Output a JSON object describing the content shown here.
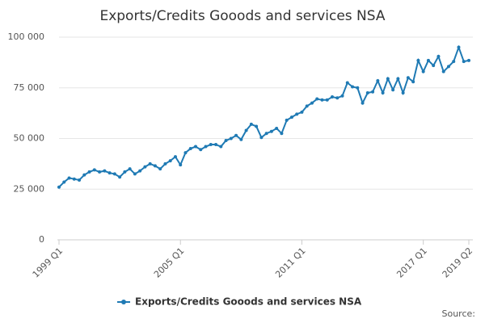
{
  "chart_data": {
    "type": "line",
    "title": "Exports/Credits Gooods and services NSA",
    "categories": [
      "1999 Q1",
      null,
      null,
      null,
      null,
      null,
      null,
      null,
      null,
      null,
      null,
      null,
      null,
      null,
      null,
      null,
      null,
      null,
      null,
      null,
      null,
      null,
      null,
      null,
      "2005 Q1",
      null,
      null,
      null,
      null,
      null,
      null,
      null,
      null,
      null,
      null,
      null,
      null,
      null,
      null,
      null,
      null,
      null,
      null,
      null,
      null,
      null,
      null,
      null,
      "2011 Q1",
      null,
      null,
      null,
      null,
      null,
      null,
      null,
      null,
      null,
      null,
      null,
      null,
      null,
      null,
      null,
      null,
      null,
      null,
      null,
      null,
      null,
      null,
      null,
      "2017 Q1",
      null,
      null,
      null,
      null,
      null,
      null,
      null,
      null,
      "2019 Q2"
    ],
    "series": [
      {
        "name": "Exports/Credits Gooods and services NSA",
        "color": "#1f7ab4",
        "values": [
          26000,
          28500,
          30500,
          30000,
          29500,
          32000,
          33500,
          34500,
          33500,
          34000,
          33000,
          32500,
          31000,
          33500,
          35000,
          32500,
          34000,
          36000,
          37500,
          36500,
          35000,
          37500,
          39000,
          41000,
          37000,
          43000,
          45000,
          46000,
          44500,
          46000,
          47000,
          47000,
          46000,
          49000,
          50000,
          51500,
          49500,
          54000,
          57000,
          56000,
          50500,
          52500,
          53500,
          55000,
          52500,
          59000,
          60500,
          62000,
          63000,
          66000,
          67500,
          69500,
          69000,
          69000,
          70500,
          70000,
          71000,
          77500,
          75500,
          75000,
          67500,
          72500,
          73000,
          78500,
          72500,
          79500,
          74000,
          79500,
          72500,
          80000,
          78000,
          88500,
          83000,
          88500,
          86000,
          90500,
          83000,
          85500,
          88000,
          95000,
          88000,
          88500
        ]
      }
    ],
    "ylim": [
      0,
      100000
    ],
    "yticks": [
      0,
      {
        "value": 25000,
        "label": "25 000"
      },
      {
        "value": 50000,
        "label": "50 000"
      },
      {
        "value": 75000,
        "label": "75 000"
      },
      {
        "value": 100000,
        "label": "100 000"
      }
    ],
    "grid": true,
    "legend": "bottom",
    "source": "Source:"
  }
}
